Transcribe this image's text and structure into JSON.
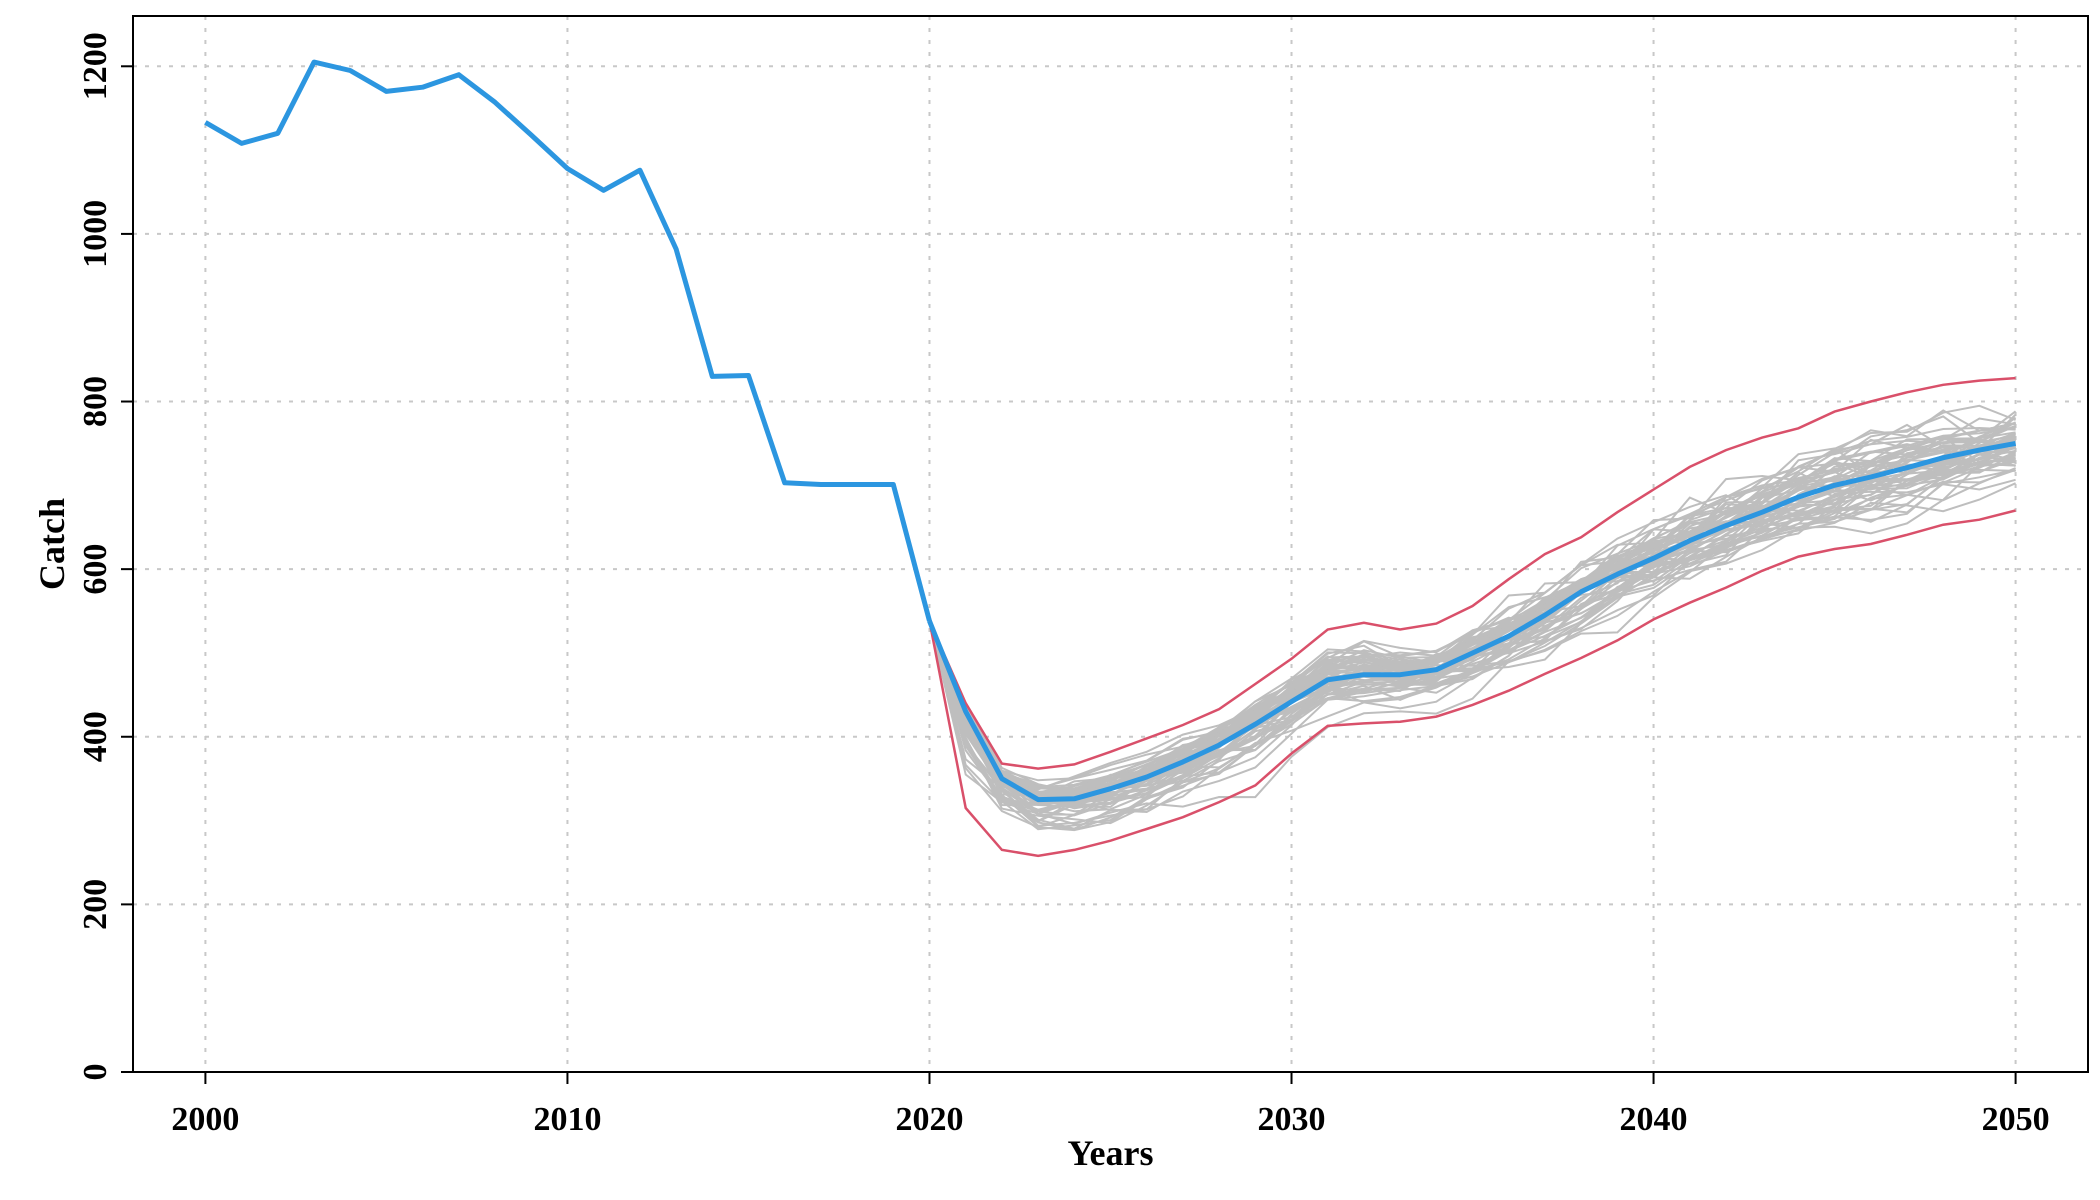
{
  "chart_data": {
    "type": "line",
    "title": "",
    "xlabel": "Years",
    "ylabel": "Catch",
    "xlim": [
      1998,
      2052
    ],
    "ylim": [
      0,
      1260
    ],
    "x_ticks": [
      "2000",
      "2010",
      "2020",
      "2030",
      "2040",
      "2050"
    ],
    "y_ticks": [
      "0",
      "200",
      "400",
      "600",
      "800",
      "1000",
      "1200"
    ],
    "grid": true,
    "legend": "none",
    "colors": {
      "median": "#2c96e0",
      "interval": "#d9506a",
      "replicates": "#bebebe"
    },
    "replicate_count": 60,
    "series": [
      {
        "role": "historical",
        "x": [
          2000,
          2001,
          2002,
          2003,
          2004,
          2005,
          2006,
          2007,
          2008,
          2009,
          2010,
          2011,
          2012,
          2013,
          2014,
          2015,
          2016,
          2017,
          2018,
          2019,
          2020
        ],
        "values": [
          1133,
          1108,
          1120,
          1205,
          1195,
          1170,
          1175,
          1190,
          1157,
          1118,
          1078,
          1052,
          1076,
          982,
          830,
          831,
          703,
          701,
          701,
          701,
          538
        ]
      },
      {
        "role": "median",
        "x": [
          2020,
          2021,
          2022,
          2023,
          2024,
          2025,
          2026,
          2027,
          2028,
          2029,
          2030,
          2031,
          2032,
          2033,
          2034,
          2035,
          2036,
          2037,
          2038,
          2039,
          2040,
          2041,
          2042,
          2043,
          2044,
          2045,
          2046,
          2047,
          2048,
          2049,
          2050
        ],
        "values": [
          538,
          430,
          350,
          325,
          326,
          338,
          352,
          370,
          390,
          415,
          442,
          468,
          474,
          474,
          480,
          500,
          520,
          545,
          573,
          594,
          613,
          634,
          652,
          668,
          686,
          700,
          710,
          721,
          733,
          742,
          750
        ]
      },
      {
        "role": "upper",
        "x": [
          2020,
          2021,
          2022,
          2023,
          2024,
          2025,
          2026,
          2027,
          2028,
          2029,
          2030,
          2031,
          2032,
          2033,
          2034,
          2035,
          2036,
          2037,
          2038,
          2039,
          2040,
          2041,
          2042,
          2043,
          2044,
          2045,
          2046,
          2047,
          2048,
          2049,
          2050
        ],
        "values": [
          538,
          440,
          368,
          362,
          367,
          382,
          398,
          414,
          433,
          463,
          493,
          528,
          536,
          528,
          535,
          556,
          588,
          618,
          638,
          668,
          695,
          722,
          742,
          757,
          768,
          788,
          800,
          811,
          820,
          825,
          828
        ]
      },
      {
        "role": "lower",
        "x": [
          2020,
          2021,
          2022,
          2023,
          2024,
          2025,
          2026,
          2027,
          2028,
          2029,
          2030,
          2031,
          2032,
          2033,
          2034,
          2035,
          2036,
          2037,
          2038,
          2039,
          2040,
          2041,
          2042,
          2043,
          2044,
          2045,
          2046,
          2047,
          2048,
          2049,
          2050
        ],
        "values": [
          538,
          315,
          265,
          258,
          265,
          276,
          290,
          304,
          322,
          342,
          380,
          413,
          416,
          418,
          424,
          438,
          455,
          475,
          494,
          515,
          540,
          560,
          578,
          598,
          615,
          624,
          630,
          641,
          653,
          659,
          670
        ]
      }
    ]
  }
}
